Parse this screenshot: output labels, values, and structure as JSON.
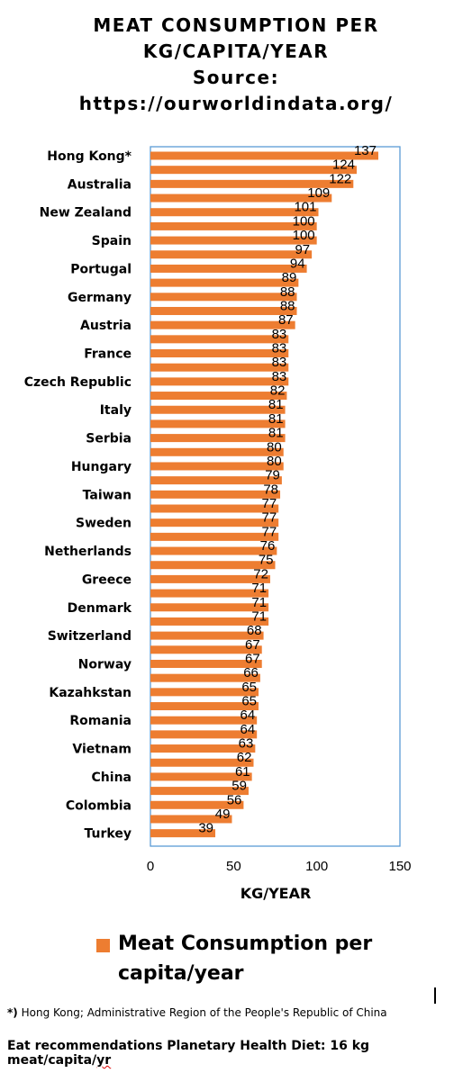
{
  "title_lines": [
    "MEAT CONSUMPTION PER",
    "KG/CAPITA/YEAR",
    "Source:",
    "https://ourworldindata.org/"
  ],
  "chart_data": {
    "type": "bar",
    "orientation": "horizontal",
    "categories": [
      "Hong Kong*",
      "",
      "Australia",
      "",
      "New Zealand",
      "",
      "Spain",
      "",
      "Portugal",
      "",
      "Germany",
      "",
      "Austria",
      "",
      "France",
      "",
      "Czech Republic",
      "",
      "Italy",
      "",
      "Serbia",
      "",
      "Hungary",
      "",
      "Taiwan",
      "",
      "Sweden",
      "",
      "Netherlands",
      "",
      "Greece",
      "",
      "Denmark",
      "",
      "Switzerland",
      "",
      "Norway",
      "",
      "Kazahkstan",
      "",
      "Romania",
      "",
      "Vietnam",
      "",
      "China",
      "",
      "Colombia",
      "",
      "Turkey"
    ],
    "series": [
      {
        "name": "Meat Consumption per capita/year",
        "color": "#ED7D31",
        "values": [
          137,
          124,
          122,
          109,
          101,
          100,
          100,
          97,
          94,
          89,
          88,
          88,
          87,
          83,
          83,
          83,
          83,
          82,
          81,
          81,
          81,
          80,
          80,
          79,
          78,
          77,
          77,
          77,
          76,
          75,
          72,
          71,
          71,
          71,
          68,
          67,
          67,
          66,
          65,
          65,
          64,
          64,
          63,
          62,
          61,
          59,
          56,
          49,
          39
        ]
      }
    ],
    "xlim": [
      0,
      150
    ],
    "xticks": [
      "0",
      "50",
      "100",
      "150"
    ],
    "xlabel": "KG/YEAR",
    "grid": false,
    "legend_position": "bottom",
    "frame_color": "#5B9BD5"
  },
  "legend": {
    "label": "Meat Consumption per capita/year"
  },
  "footnote": {
    "marker": "*)",
    "name": "Hong Kong;",
    "text": "Administrative Region of the People's Republic of China"
  },
  "recommendation": {
    "text": "Eat recommendations Planetary Health Diet: 16 kg meat/capita/",
    "unit": "yr"
  }
}
